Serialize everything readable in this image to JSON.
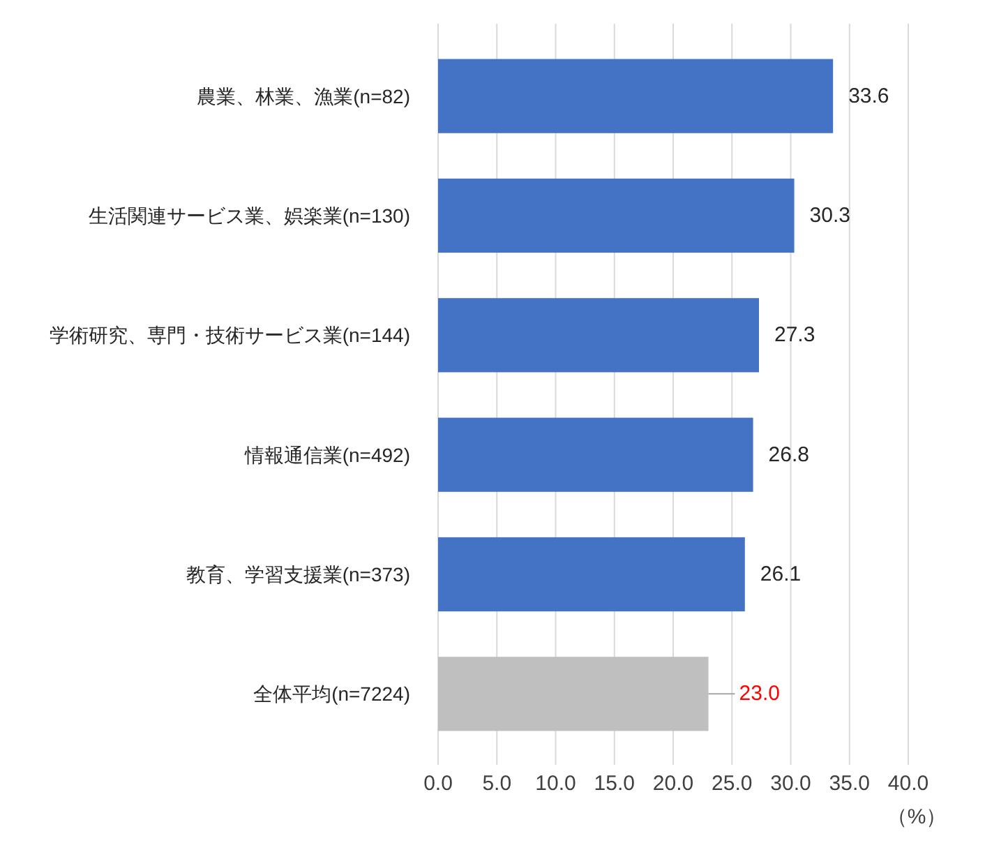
{
  "chart_data": {
    "type": "bar",
    "orientation": "horizontal",
    "xlabel": "（%）",
    "categories": [
      "農業、林業、漁業(n=82)",
      "生活関連サービス業、娯楽業(n=130)",
      "学術研究、専門・技術サービス業(n=144)",
      "情報通信業(n=492)",
      "教育、学習支援業(n=373)",
      "全体平均(n=7224)"
    ],
    "values": [
      33.6,
      30.3,
      27.3,
      26.8,
      26.1,
      23.0
    ],
    "colors": [
      "#4472c4",
      "#4472c4",
      "#4472c4",
      "#4472c4",
      "#4472c4",
      "#bfbfbf"
    ],
    "value_labels": [
      "33.6",
      "30.3",
      "27.3",
      "26.8",
      "26.1",
      "23.0"
    ],
    "xlim": [
      0,
      40
    ],
    "xticks": [
      {
        "value": 0,
        "label": "0.0"
      },
      {
        "value": 5,
        "label": "5.0"
      },
      {
        "value": 10,
        "label": "10.0"
      },
      {
        "value": 15,
        "label": "15.0"
      },
      {
        "value": 20,
        "label": "20.0"
      },
      {
        "value": 25,
        "label": "25.0"
      },
      {
        "value": 30,
        "label": "30.0"
      },
      {
        "value": 35,
        "label": "35.0"
      },
      {
        "value": 40,
        "label": "40.0"
      }
    ],
    "grid": "x"
  }
}
